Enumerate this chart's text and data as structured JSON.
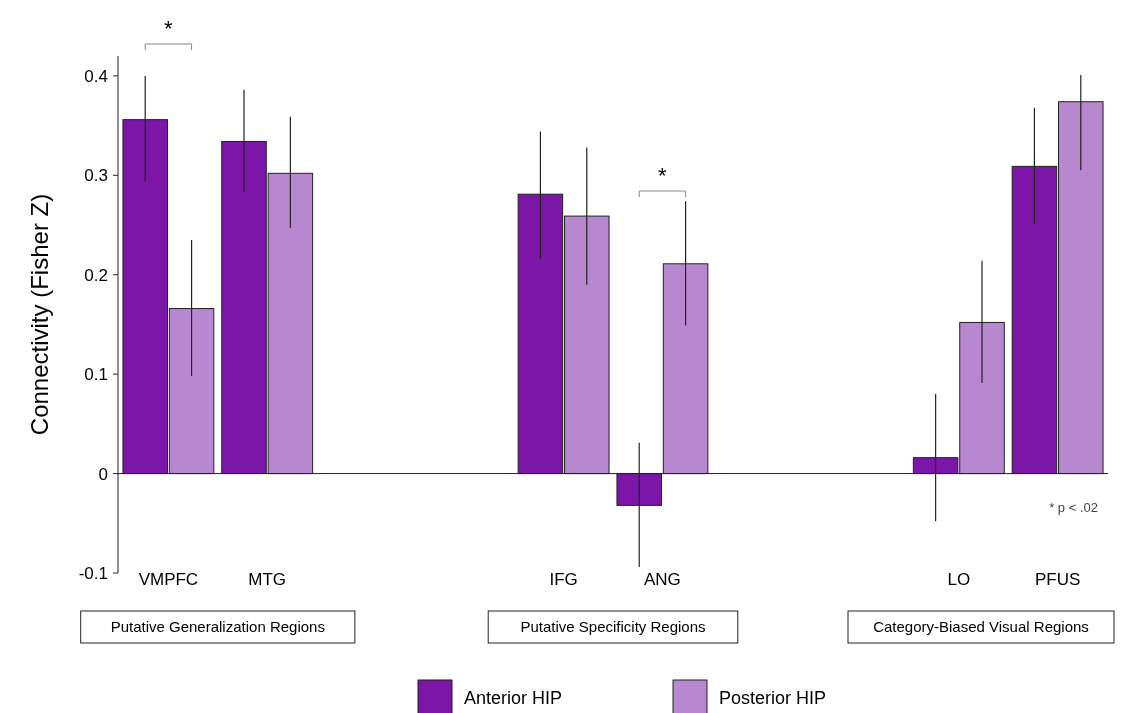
{
  "chart_data": {
    "type": "bar",
    "ylabel": "Connectivity (Fisher Z)",
    "categories": [
      "VMPFC",
      "MTG",
      null,
      null,
      "IFG",
      "ANG",
      null,
      null,
      "LO",
      "PFUS"
    ],
    "series": [
      {
        "name": "Anterior HIP",
        "color": "#7b16a8",
        "values": [
          0.356,
          0.334,
          null,
          null,
          0.281,
          -0.032,
          null,
          null,
          0.016,
          0.309
        ],
        "errors": [
          [
            0.294,
            0.4
          ],
          [
            0.283,
            0.386
          ],
          null,
          null,
          [
            0.216,
            0.344
          ],
          [
            -0.094,
            0.031
          ],
          null,
          null,
          [
            -0.048,
            0.08
          ],
          [
            0.251,
            0.368
          ]
        ]
      },
      {
        "name": "Posterior HIP",
        "color": "#b788cf",
        "values": [
          0.166,
          0.302,
          null,
          null,
          0.259,
          0.211,
          null,
          null,
          0.152,
          0.374
        ],
        "errors": [
          [
            0.098,
            0.235
          ],
          [
            0.247,
            0.359
          ],
          null,
          null,
          [
            0.19,
            0.328
          ],
          [
            0.149,
            0.274
          ],
          null,
          null,
          [
            0.091,
            0.214
          ],
          [
            0.305,
            0.401
          ]
        ]
      }
    ],
    "ylim": [
      -0.1,
      0.42
    ],
    "yticks": [
      -0.1,
      0,
      0.1,
      0.2,
      0.3,
      0.4
    ],
    "legend": "bottom",
    "annotations": [
      "Putative Generalization Regions",
      "Putative Specificity Regions",
      "Category-Biased Visual Regions",
      "* p < .02",
      "*",
      "*"
    ]
  }
}
